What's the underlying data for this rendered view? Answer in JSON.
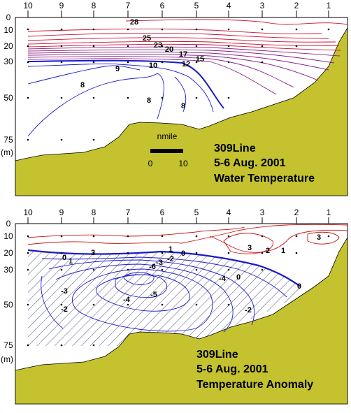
{
  "chart_data": [
    {
      "type": "contour",
      "panel": "top",
      "station_labels": [
        "10",
        "9",
        "8",
        "7",
        "6",
        "5",
        "4",
        "3",
        "2",
        "1"
      ],
      "depth_ticks": [
        "0",
        "10",
        "20",
        "30",
        "50",
        "75"
      ],
      "depth_unit": "(m)",
      "depth_values": [
        0,
        10,
        20,
        30,
        50,
        75
      ],
      "title_lines": [
        "309Line",
        "5-6 Aug. 2001",
        "Water Temperature"
      ],
      "scale_bar": {
        "label": "nmile",
        "start": "0",
        "end": "10"
      },
      "contour_labels": [
        {
          "text": "28",
          "value": 28
        },
        {
          "text": "25",
          "value": 25
        },
        {
          "text": "23",
          "value": 23
        },
        {
          "text": "20",
          "value": 20
        },
        {
          "text": "17",
          "value": 17
        },
        {
          "text": "15",
          "value": 15
        },
        {
          "text": "12",
          "value": 12
        },
        {
          "text": "10",
          "value": 10
        },
        {
          "text": "9",
          "value": 9
        },
        {
          "text": "8",
          "value": 8
        },
        {
          "text": "8",
          "value": 8
        },
        {
          "text": "8",
          "value": 8
        }
      ],
      "colors": {
        "land": "#c4c22e",
        "warm": "#cc1133",
        "mid": "#882288",
        "cold": "#1a1acc"
      }
    },
    {
      "type": "contour",
      "panel": "bottom",
      "station_labels": [
        "10",
        "9",
        "8",
        "7",
        "6",
        "5",
        "4",
        "3",
        "2",
        "1"
      ],
      "depth_ticks": [
        "0",
        "10",
        "20",
        "30",
        "50",
        "75"
      ],
      "depth_unit": "(m)",
      "depth_values": [
        0,
        10,
        20,
        30,
        50,
        75
      ],
      "title_lines": [
        "309Line",
        "5-6 Aug. 2001",
        "Temperature Anomaly"
      ],
      "contour_labels": [
        {
          "text": "3",
          "value": 3
        },
        {
          "text": "3",
          "value": 3
        },
        {
          "text": "2",
          "value": 2
        },
        {
          "text": "1",
          "value": 1
        },
        {
          "text": "3",
          "value": 3
        },
        {
          "text": "1",
          "value": 1
        },
        {
          "text": "0",
          "value": 0
        },
        {
          "text": "0",
          "value": 0
        },
        {
          "text": "1",
          "value": 1
        },
        {
          "text": "0",
          "value": 0
        },
        {
          "text": "-2",
          "value": -2
        },
        {
          "text": "-3",
          "value": -3
        },
        {
          "text": "-6",
          "value": -6
        },
        {
          "text": "-5",
          "value": -5
        },
        {
          "text": "-4",
          "value": -4
        },
        {
          "text": "-4",
          "value": -4
        },
        {
          "text": "-3",
          "value": -3
        },
        {
          "text": "-2",
          "value": -2
        },
        {
          "text": "-2",
          "value": -2
        },
        {
          "text": "0",
          "value": 0
        }
      ],
      "colors": {
        "land": "#c4c22e",
        "positive": "#cc1111",
        "zero": "#1a1acc",
        "negative": "#1a1acc"
      }
    }
  ]
}
